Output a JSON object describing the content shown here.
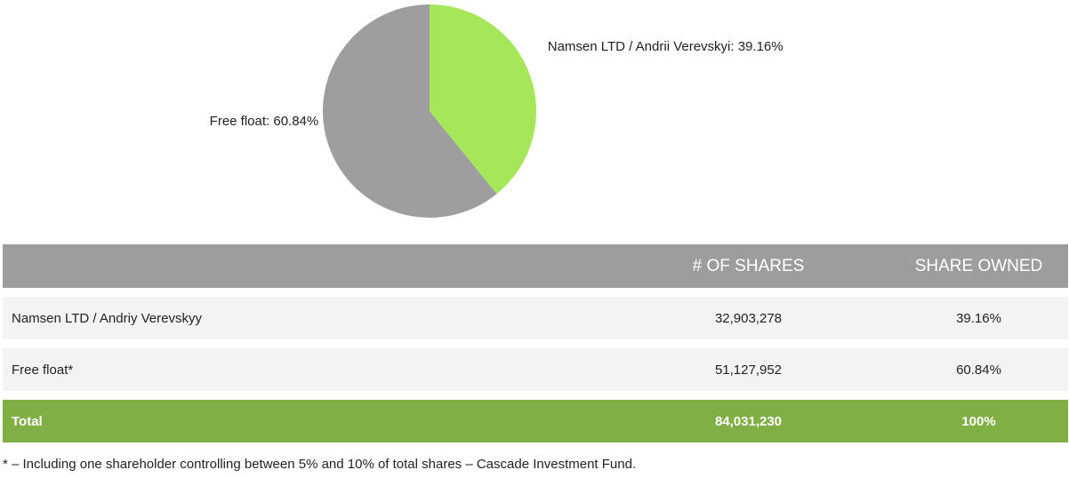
{
  "chart_data": {
    "type": "pie",
    "slices": [
      {
        "label": "Namsen LTD / Andrii Verevskyi: 39.16%",
        "value": 39.16,
        "color": "#a6e75a"
      },
      {
        "label": "Free float: 60.84%",
        "value": 60.84,
        "color": "#9e9e9e"
      }
    ]
  },
  "table": {
    "headers": {
      "name": "",
      "shares": "# OF SHARES",
      "owned": "SHARE OWNED"
    },
    "rows": [
      {
        "name": "Namsen LTD / Andriy Verevskyy",
        "shares": "32,903,278",
        "owned": "39.16%"
      },
      {
        "name": "Free float*",
        "shares": "51,127,952",
        "owned": "60.84%"
      }
    ],
    "total": {
      "name": "Total",
      "shares": "84,031,230",
      "owned": "100%"
    }
  },
  "colors": {
    "header_bg": "#9d9d9d",
    "row_bg": "#f3f3f3",
    "total_bg": "#80b045"
  },
  "footnote": "* – Including one shareholder controlling between 5% and 10% of total shares – Cascade Investment Fund."
}
